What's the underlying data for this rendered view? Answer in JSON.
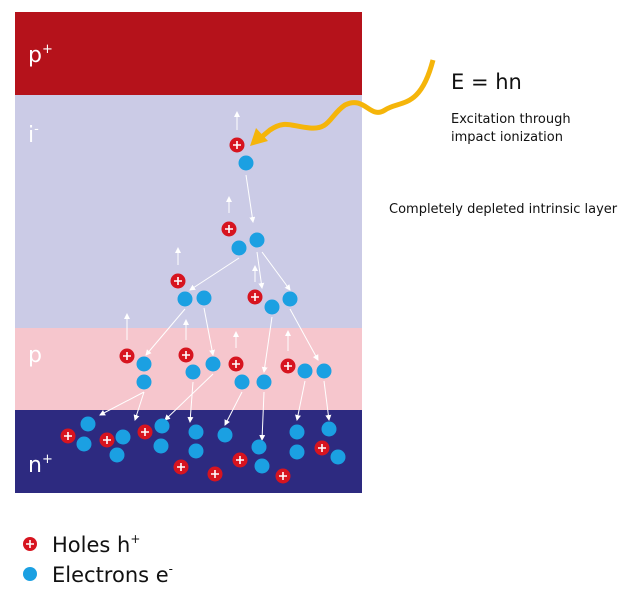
{
  "layers": [
    {
      "base": "p",
      "sup": "+"
    },
    {
      "base": "i",
      "sup": "-"
    },
    {
      "base": "p"
    },
    {
      "base": "n",
      "sup": "+"
    }
  ],
  "excitation": {
    "formula": "E = hn",
    "caption": [
      "Excitation through",
      "impact ionization"
    ]
  },
  "depleted_label": "Completely depleted intrinsic layer",
  "legend": [
    {
      "base": "Holes h",
      "sup": "+"
    },
    {
      "base": "Electrons e",
      "sup": "-"
    }
  ]
}
